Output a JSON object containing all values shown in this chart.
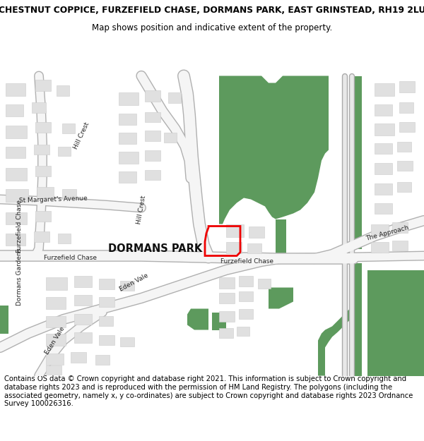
{
  "title_line1": "CHESTNUT COPPICE, FURZEFIELD CHASE, DORMANS PARK, EAST GRINSTEAD, RH19 2LU",
  "title_line2": "Map shows position and indicative extent of the property.",
  "footer_text": "Contains OS data © Crown copyright and database right 2021. This information is subject to Crown copyright and database rights 2023 and is reproduced with the permission of HM Land Registry. The polygons (including the associated geometry, namely x, y co-ordinates) are subject to Crown copyright and database rights 2023 Ordnance Survey 100026316.",
  "map_bg": "#ffffff",
  "green_color": "#5d9a5d",
  "red_outline_color": "#ee0000",
  "building_color": "#e0e0e0",
  "building_edge_color": "#cccccc",
  "title_fontsize": 8.8,
  "subtitle_fontsize": 8.5,
  "footer_fontsize": 7.2,
  "label_fontsize": 6.5,
  "dormans_park_fontsize": 10.5
}
